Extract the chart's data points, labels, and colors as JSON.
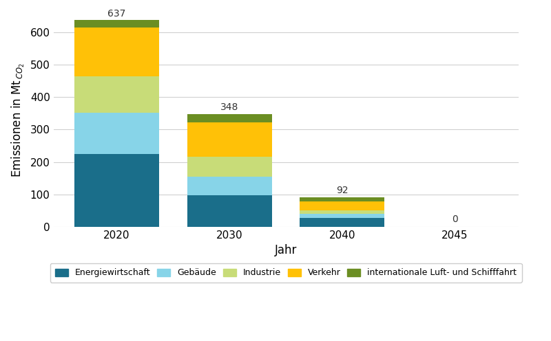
{
  "years": [
    "2020",
    "2030",
    "2040",
    "2045"
  ],
  "categories": [
    "Energiewirtschaft",
    "Gebäude",
    "Industrie",
    "Verkehr",
    "internationale Luft- und Schifffahrt"
  ],
  "colors": [
    "#1a6e8a",
    "#87d4e8",
    "#c8dc78",
    "#ffc107",
    "#6b8e23"
  ],
  "values": {
    "Energiewirtschaft": [
      225,
      97,
      28,
      0
    ],
    "Gebäude": [
      127,
      57,
      12,
      0
    ],
    "Industrie": [
      112,
      63,
      10,
      0
    ],
    "Verkehr": [
      150,
      105,
      28,
      0
    ],
    "internationale Luft- und Schifffahrt": [
      23,
      26,
      14,
      0
    ]
  },
  "totals": [
    637,
    348,
    92,
    0
  ],
  "ylabel_main": "Emissionen in Mt",
  "ylabel_sub": "CO2",
  "xlabel": "Jahr",
  "ylim": [
    0,
    660
  ],
  "yticks": [
    0,
    100,
    200,
    300,
    400,
    500,
    600
  ],
  "bar_width": 0.75,
  "background_color": "#ffffff",
  "grid_color": "#d0d0d0",
  "tick_label_fontsize": 11,
  "axis_label_fontsize": 12,
  "annotation_fontsize": 10
}
